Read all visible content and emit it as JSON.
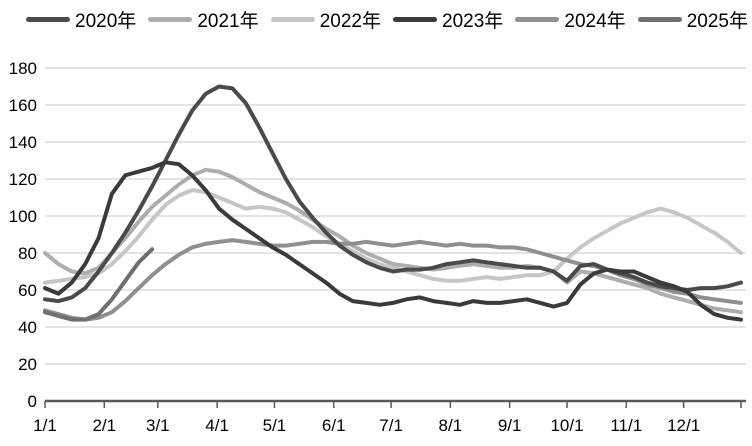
{
  "legend": {
    "items": [
      {
        "label": "2020年",
        "color": "#4a4a4a"
      },
      {
        "label": "2021年",
        "color": "#adadad"
      },
      {
        "label": "2022年",
        "color": "#c6c6c6"
      },
      {
        "label": "2023年",
        "color": "#3a3a3a"
      },
      {
        "label": "2024年",
        "color": "#8f8f8f"
      },
      {
        "label": "2025年",
        "color": "#6f6f6f"
      }
    ]
  },
  "chart_data": {
    "type": "line",
    "title": "",
    "xlabel": "",
    "ylabel": "",
    "grid": true,
    "legend_position": "top",
    "x_axis": {
      "tick_labels": [
        "1/1",
        "2/1",
        "3/1",
        "4/1",
        "5/1",
        "6/1",
        "7/1",
        "8/1",
        "9/1",
        "10/1",
        "11/1",
        "12/1"
      ],
      "tick_days": [
        1,
        32,
        60,
        91,
        121,
        152,
        182,
        213,
        244,
        274,
        305,
        335
      ],
      "end_tick_day": 365,
      "domain_days": [
        1,
        365
      ]
    },
    "y_axis": {
      "min": 0,
      "max": 180,
      "step": 20,
      "tick_labels": [
        "0",
        "20",
        "40",
        "60",
        "80",
        "100",
        "120",
        "140",
        "160",
        "180"
      ]
    },
    "x_days": [
      1,
      8,
      15,
      22,
      29,
      36,
      43,
      50,
      57,
      64,
      71,
      78,
      85,
      92,
      99,
      106,
      113,
      120,
      127,
      134,
      141,
      148,
      155,
      162,
      169,
      176,
      183,
      190,
      197,
      204,
      211,
      218,
      225,
      232,
      239,
      246,
      253,
      260,
      267,
      274,
      281,
      288,
      295,
      302,
      309,
      316,
      323,
      330,
      337,
      344,
      351,
      358,
      365
    ],
    "series": [
      {
        "name": "2020年",
        "color": "#4a4a4a",
        "values": [
          55,
          54,
          56,
          61,
          70,
          80,
          91,
          103,
          116,
          130,
          144,
          157,
          166,
          170,
          169,
          161,
          148,
          134,
          120,
          108,
          99,
          91,
          84,
          79,
          75,
          72,
          70,
          71,
          71,
          72,
          74,
          75,
          76,
          75,
          74,
          73,
          72,
          72,
          70,
          65,
          73,
          74,
          71,
          69,
          67,
          64,
          62,
          61,
          60,
          61,
          61,
          62,
          64
        ]
      },
      {
        "name": "2021年",
        "color": "#adadad",
        "values": [
          80,
          74,
          70,
          69,
          72,
          80,
          88,
          97,
          105,
          111,
          117,
          122,
          125,
          124,
          121,
          117,
          113,
          110,
          107,
          103,
          98,
          93,
          89,
          84,
          80,
          77,
          74,
          73,
          72,
          71,
          72,
          73,
          74,
          73,
          72,
          72,
          73,
          72,
          70,
          64,
          70,
          69,
          67,
          65,
          63,
          61,
          58,
          56,
          54,
          52,
          50,
          49,
          48
        ]
      },
      {
        "name": "2022年",
        "color": "#c6c6c6",
        "values": [
          64,
          65,
          66,
          67,
          69,
          74,
          81,
          89,
          98,
          106,
          111,
          114,
          113,
          110,
          107,
          104,
          105,
          104,
          102,
          98,
          94,
          89,
          85,
          81,
          77,
          74,
          72,
          70,
          68,
          66,
          65,
          65,
          66,
          67,
          66,
          67,
          68,
          68,
          70,
          77,
          83,
          88,
          92,
          96,
          99,
          102,
          104,
          102,
          99,
          95,
          91,
          86,
          80
        ]
      },
      {
        "name": "2023年",
        "color": "#3a3a3a",
        "values": [
          61,
          58,
          64,
          74,
          88,
          112,
          122,
          124,
          126,
          129,
          128,
          122,
          114,
          104,
          98,
          93,
          88,
          83,
          79,
          74,
          69,
          64,
          58,
          54,
          53,
          52,
          53,
          55,
          56,
          54,
          53,
          52,
          54,
          53,
          53,
          54,
          55,
          53,
          51,
          53,
          63,
          69,
          71,
          70,
          70,
          67,
          64,
          62,
          59,
          52,
          47,
          45,
          44
        ]
      },
      {
        "name": "2024年",
        "color": "#8f8f8f",
        "values": [
          49,
          47,
          45,
          44,
          45,
          48,
          54,
          61,
          68,
          74,
          79,
          83,
          85,
          86,
          87,
          86,
          85,
          84,
          84,
          85,
          86,
          86,
          85,
          85,
          86,
          85,
          84,
          85,
          86,
          85,
          84,
          85,
          84,
          84,
          83,
          83,
          82,
          80,
          78,
          76,
          74,
          73,
          71,
          68,
          66,
          63,
          61,
          59,
          58,
          56,
          55,
          54,
          53
        ]
      },
      {
        "name": "2025年",
        "color": "#6f6f6f",
        "values": [
          48,
          46,
          44,
          44,
          47,
          55,
          65,
          75,
          82,
          null,
          null,
          null,
          null,
          null,
          null,
          null,
          null,
          null,
          null,
          null,
          null,
          null,
          null,
          null,
          null,
          null,
          null,
          null,
          null,
          null,
          null,
          null,
          null,
          null,
          null,
          null,
          null,
          null,
          null,
          null,
          null,
          null,
          null,
          null,
          null,
          null,
          null,
          null,
          null,
          null,
          null,
          null,
          null
        ]
      }
    ],
    "style": {
      "gridline_color": "#c9c9c9",
      "axis_color": "#595959",
      "line_width": 4,
      "tick_font_size": 17
    }
  }
}
